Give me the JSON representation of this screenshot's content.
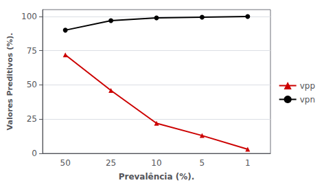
{
  "chart_data": {
    "type": "line",
    "xlabel": "Prevalência (%).",
    "ylabel": "Valores Preditivos (%).",
    "categories": [
      "50",
      "25",
      "10",
      "5",
      "1"
    ],
    "series": [
      {
        "name": "vpp",
        "color": "#cc0000",
        "marker": "triangle",
        "values": [
          72,
          46,
          22,
          13,
          3
        ]
      },
      {
        "name": "vpn",
        "color": "#000000",
        "marker": "circle",
        "values": [
          90,
          97,
          99,
          99.5,
          100
        ]
      }
    ],
    "ylim": [
      0,
      105
    ],
    "yticks": [
      0,
      25,
      50,
      75,
      100
    ],
    "grid": true,
    "legend": "right"
  }
}
